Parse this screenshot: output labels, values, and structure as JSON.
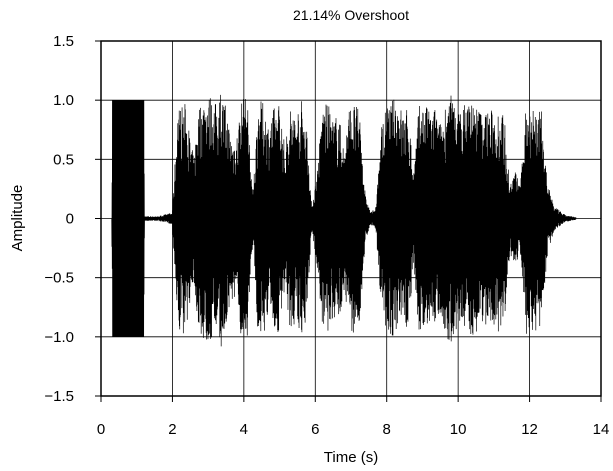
{
  "chart_data": {
    "type": "line",
    "title": "21.14% Overshoot",
    "xlabel": "Time (s)",
    "ylabel": "Amplitude",
    "xlim": [
      0,
      14
    ],
    "ylim": [
      -1.5,
      1.5
    ],
    "x_ticks": [
      0,
      2,
      4,
      6,
      8,
      10,
      12,
      14
    ],
    "x_tick_labels": [
      "0",
      "2",
      "4",
      "6",
      "8",
      "10",
      "12",
      "14"
    ],
    "y_ticks": [
      1.5,
      1.0,
      0.5,
      0,
      -0.5,
      -1.0,
      -1.5
    ],
    "y_tick_labels": [
      "1.5",
      "1.0",
      "0.5",
      "0",
      "−0.5",
      "−1.0",
      "−1.5"
    ],
    "grid": true,
    "line_color": "#000000",
    "series": [
      {
        "x": [
          0.3,
          0.32,
          1.2,
          1.22,
          1.6,
          2.0,
          2.05,
          2.15,
          2.35,
          2.5,
          2.6,
          2.7,
          2.8,
          2.95,
          3.05,
          3.2,
          3.35,
          3.5,
          3.65,
          3.8,
          3.95,
          4.1,
          4.25,
          4.4,
          4.55,
          4.7,
          4.85,
          5.0,
          5.15,
          5.3,
          5.45,
          5.6,
          5.75,
          5.9,
          6.05,
          6.2,
          6.35,
          6.5,
          6.65,
          6.8,
          6.95,
          7.1,
          7.25,
          7.4,
          7.55,
          7.7,
          7.85,
          8.0,
          8.15,
          8.3,
          8.45,
          8.6,
          8.75,
          8.9,
          9.05,
          9.2,
          9.35,
          9.5,
          9.65,
          9.8,
          9.95,
          10.1,
          10.25,
          10.4,
          10.55,
          10.7,
          10.85,
          11.0,
          11.15,
          11.3,
          11.45,
          11.6,
          11.75,
          11.9,
          12.05,
          12.2,
          12.35,
          12.5,
          12.7,
          13.0,
          13.3
        ],
        "envelope": [
          0.0,
          1.0,
          1.0,
          0.02,
          0.02,
          0.05,
          0.35,
          0.95,
          0.98,
          0.7,
          0.5,
          0.9,
          1.0,
          1.08,
          1.05,
          0.98,
          1.1,
          0.95,
          0.7,
          0.72,
          1.05,
          1.0,
          0.2,
          1.0,
          0.98,
          0.8,
          0.95,
          1.0,
          0.6,
          0.95,
          0.9,
          1.02,
          0.85,
          0.1,
          0.4,
          0.95,
          0.98,
          0.85,
          0.9,
          0.6,
          0.95,
          0.98,
          0.9,
          0.2,
          0.05,
          0.1,
          0.8,
          0.95,
          1.0,
          1.05,
          0.9,
          0.95,
          0.4,
          0.95,
          1.0,
          0.9,
          0.95,
          0.8,
          1.0,
          1.05,
          0.95,
          0.9,
          1.05,
          1.0,
          0.95,
          0.9,
          0.95,
          0.9,
          0.98,
          0.85,
          0.3,
          0.4,
          0.3,
          0.98,
          1.0,
          0.95,
          0.9,
          0.3,
          0.1,
          0.03,
          0.01
        ]
      }
    ]
  }
}
